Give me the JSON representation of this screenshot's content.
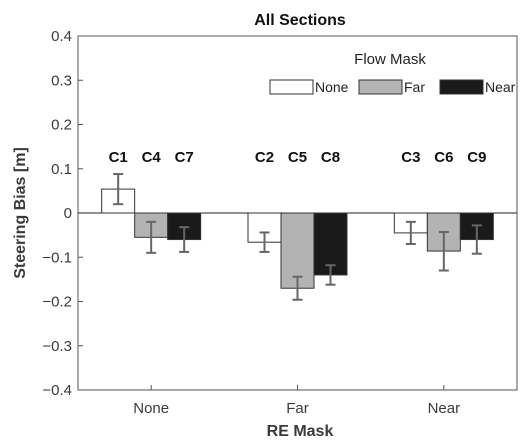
{
  "chart_data": {
    "type": "bar",
    "title": "All Sections",
    "xlabel": "RE Mask",
    "ylabel": "Steering Bias [m]",
    "categories": [
      "None",
      "Far",
      "Near"
    ],
    "ylim": [
      -0.4,
      0.4
    ],
    "yticks": [
      "0.4",
      "0.3",
      "0.2",
      "0.1",
      "0",
      "−0.1",
      "−0.2",
      "−0.3",
      "−0.4"
    ],
    "ytick_values": [
      0.4,
      0.3,
      0.2,
      0.1,
      0,
      -0.1,
      -0.2,
      -0.3,
      -0.4
    ],
    "grid": false,
    "legend": {
      "title": "Flow Mask",
      "placement": "top-right"
    },
    "series": [
      {
        "name": "None",
        "color": "#ffffff",
        "values": [
          0.054,
          -0.066,
          -0.045
        ],
        "err_low": [
          0.02,
          -0.088,
          -0.07
        ],
        "err_high": [
          0.088,
          -0.044,
          -0.02
        ]
      },
      {
        "name": "Far",
        "color": "#b3b3b3",
        "values": [
          -0.055,
          -0.17,
          -0.086
        ],
        "err_low": [
          -0.09,
          -0.196,
          -0.13
        ],
        "err_high": [
          -0.02,
          -0.144,
          -0.043
        ]
      },
      {
        "name": "Near",
        "color": "#1a1a1a",
        "values": [
          -0.06,
          -0.14,
          -0.06
        ],
        "err_low": [
          -0.088,
          -0.162,
          -0.092
        ],
        "err_high": [
          -0.032,
          -0.118,
          -0.028
        ]
      }
    ],
    "condition_labels": [
      [
        "C1",
        "C4",
        "C7"
      ],
      [
        "C2",
        "C5",
        "C8"
      ],
      [
        "C3",
        "C6",
        "C9"
      ]
    ]
  }
}
